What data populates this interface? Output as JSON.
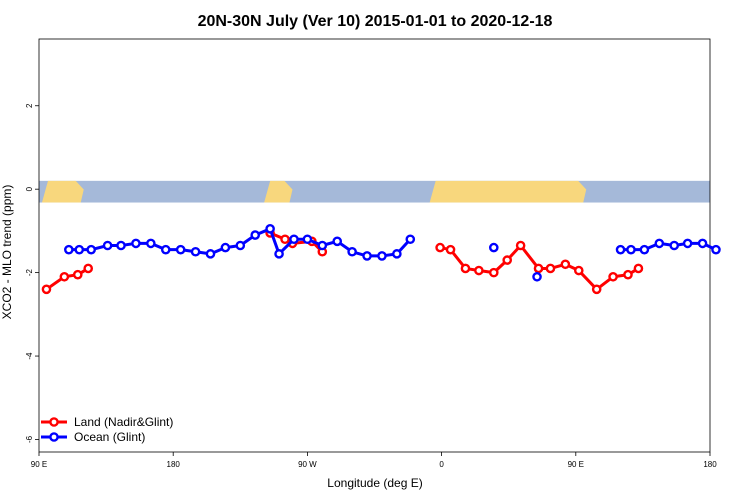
{
  "chart_data": {
    "type": "line",
    "title": "20N-30N July (Ver 10)   2015-01-01 to 2020-12-18",
    "xlabel": "Longitude (deg E)",
    "ylabel": "XCO2 - MLO trend (ppm)",
    "xlim": [
      90,
      540
    ],
    "ylim": [
      -6.3,
      3.6
    ],
    "x_ticks": [
      {
        "value": 90,
        "label": "90 E"
      },
      {
        "value": 180,
        "label": "180"
      },
      {
        "value": 270,
        "label": "90 W"
      },
      {
        "value": 360,
        "label": "0"
      },
      {
        "value": 450,
        "label": "90 E"
      },
      {
        "value": 540,
        "label": "180"
      }
    ],
    "y_ticks": [
      {
        "value": 2,
        "label": "2"
      },
      {
        "value": 0,
        "label": "0"
      },
      {
        "value": -2,
        "label": "-2"
      },
      {
        "value": -4,
        "label": "-4"
      },
      {
        "value": -6,
        "label": "-6"
      }
    ],
    "legend_position": "bottom-left",
    "series": [
      {
        "name": "Land (Nadir&Glint)",
        "color": "#ff0000",
        "segments": [
          [
            [
              95,
              -2.4
            ],
            [
              107,
              -2.1
            ],
            [
              116,
              -2.05
            ],
            [
              123,
              -1.9
            ]
          ],
          [
            [
              245,
              -1.05
            ],
            [
              255,
              -1.2
            ],
            [
              260,
              -1.3
            ],
            [
              273,
              -1.25
            ],
            [
              280,
              -1.5
            ]
          ],
          [
            [
              359,
              -1.4
            ],
            [
              366,
              -1.45
            ],
            [
              376,
              -1.9
            ],
            [
              385,
              -1.95
            ],
            [
              395,
              -2.0
            ],
            [
              404,
              -1.7
            ],
            [
              413,
              -1.35
            ],
            [
              425,
              -1.9
            ],
            [
              433,
              -1.9
            ],
            [
              443,
              -1.8
            ],
            [
              452,
              -1.95
            ],
            [
              464,
              -2.4
            ],
            [
              475,
              -2.1
            ],
            [
              485,
              -2.05
            ],
            [
              492,
              -1.9
            ]
          ]
        ]
      },
      {
        "name": "Ocean (Glint)",
        "color": "#0000ff",
        "segments": [
          [
            [
              110,
              -1.45
            ],
            [
              117,
              -1.45
            ],
            [
              125,
              -1.45
            ],
            [
              136,
              -1.35
            ],
            [
              145,
              -1.35
            ],
            [
              155,
              -1.3
            ],
            [
              165,
              -1.3
            ],
            [
              175,
              -1.45
            ],
            [
              185,
              -1.45
            ],
            [
              195,
              -1.5
            ],
            [
              205,
              -1.55
            ],
            [
              215,
              -1.4
            ],
            [
              225,
              -1.35
            ],
            [
              235,
              -1.1
            ],
            [
              245,
              -0.95
            ],
            [
              251,
              -1.55
            ],
            [
              261,
              -1.2
            ],
            [
              270,
              -1.2
            ],
            [
              280,
              -1.35
            ],
            [
              290,
              -1.25
            ],
            [
              300,
              -1.5
            ],
            [
              310,
              -1.6
            ],
            [
              320,
              -1.6
            ],
            [
              330,
              -1.55
            ],
            [
              339,
              -1.2
            ]
          ],
          [
            [
              395,
              -1.4
            ]
          ],
          [
            [
              424,
              -2.1
            ]
          ],
          [
            [
              480,
              -1.45
            ],
            [
              487,
              -1.45
            ],
            [
              496,
              -1.45
            ],
            [
              506,
              -1.3
            ],
            [
              516,
              -1.35
            ],
            [
              525,
              -1.3
            ],
            [
              535,
              -1.3
            ],
            [
              544,
              -1.45
            ]
          ]
        ]
      }
    ]
  },
  "colors": {
    "band_ocean": "#a5b9d9",
    "band_land": "#f8d77d",
    "land_line": "#ff0000",
    "ocean_line": "#0000ff"
  }
}
